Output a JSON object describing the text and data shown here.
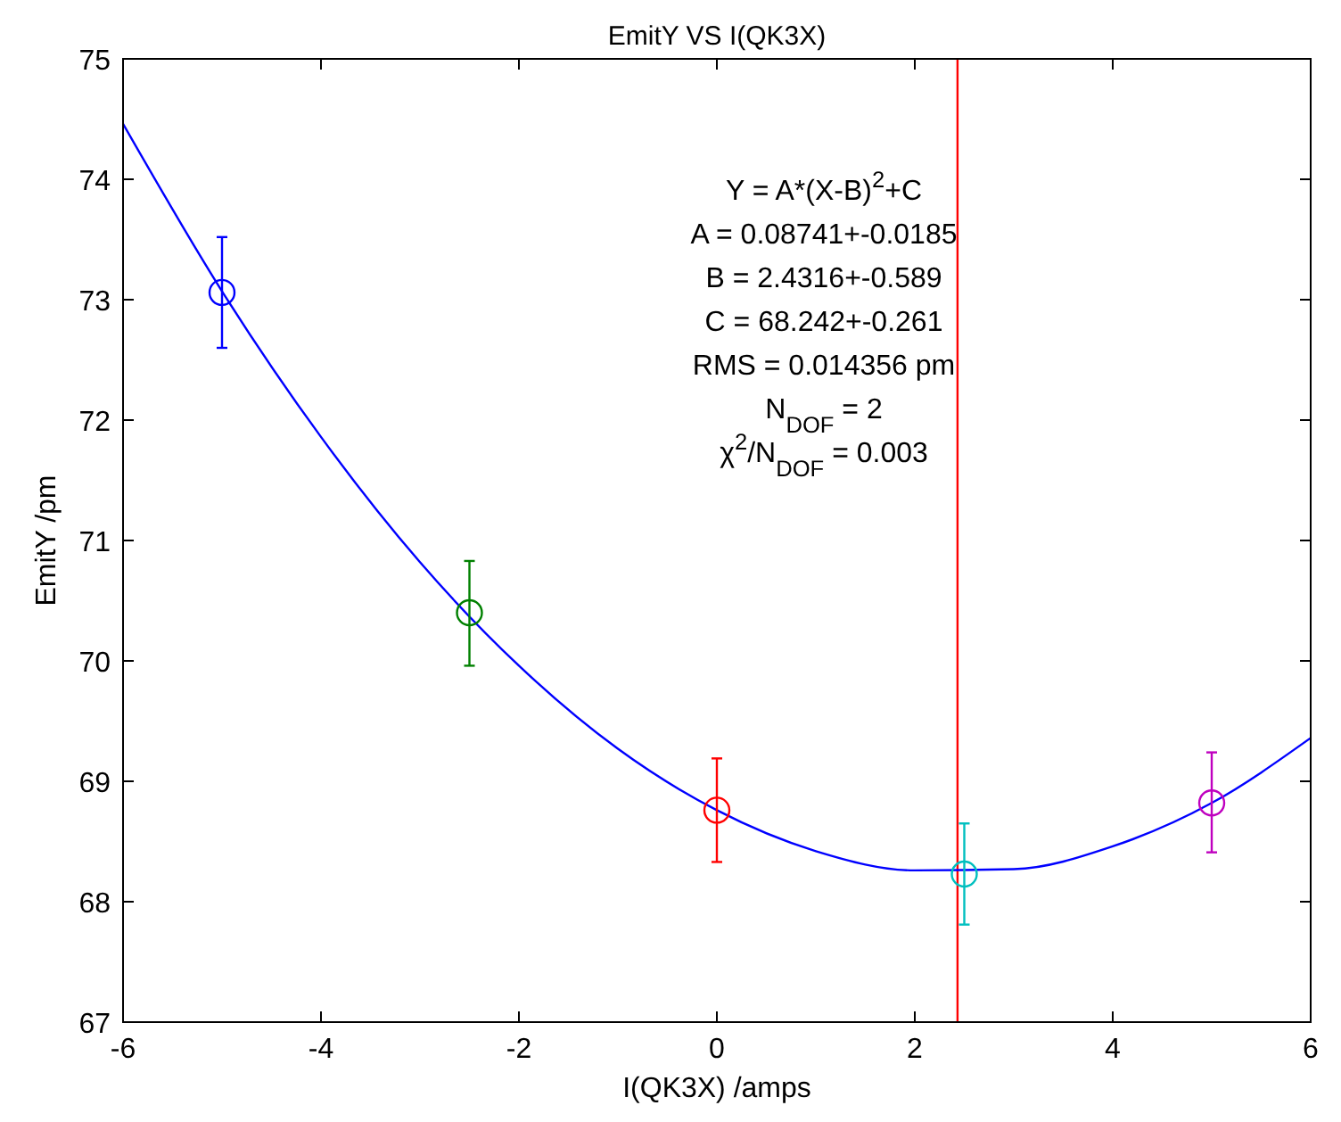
{
  "chart_data": {
    "type": "scatter",
    "title": "EmitY VS I(QK3X)",
    "xlabel": "I(QK3X) /amps",
    "ylabel": "EmitY /pm",
    "xlim": [
      -6,
      6
    ],
    "xticks": [
      -6,
      -4,
      -2,
      0,
      2,
      4,
      6
    ],
    "ylim": [
      67,
      75
    ],
    "yticks": [
      67,
      68,
      69,
      70,
      71,
      72,
      73,
      74,
      75
    ],
    "grid": false,
    "series": [
      {
        "type": "line",
        "color": "#0000ff",
        "marker": "none",
        "line_style": "solid",
        "x": [
          -6,
          -5,
          -4,
          -3,
          -2,
          -1,
          0,
          1,
          2,
          3,
          4,
          5,
          6
        ],
        "values": [
          74.46,
          73.07,
          71.86,
          70.82,
          69.96,
          69.27,
          68.76,
          68.42,
          68.26,
          68.27,
          68.46,
          68.82,
          69.36
        ]
      },
      {
        "color": "#0000ff",
        "marker": "circle",
        "x": [
          -5
        ],
        "values": [
          73.06
        ],
        "errors": [
          [
            72.6,
            73.52
          ]
        ]
      },
      {
        "color": "#008000",
        "marker": "circle",
        "x": [
          -2.5
        ],
        "values": [
          70.4
        ],
        "errors": [
          [
            69.96,
            70.83
          ]
        ]
      },
      {
        "color": "#ff0000",
        "marker": "circle",
        "x": [
          0
        ],
        "values": [
          68.76
        ],
        "errors": [
          [
            68.33,
            69.19
          ]
        ]
      },
      {
        "color": "#00bfbf",
        "marker": "circle",
        "x": [
          2.5
        ],
        "values": [
          68.23
        ],
        "errors": [
          [
            67.81,
            68.65
          ]
        ]
      },
      {
        "color": "#bf00bf",
        "marker": "circle",
        "x": [
          5
        ],
        "values": [
          68.82
        ],
        "errors": [
          [
            68.41,
            69.24
          ]
        ]
      }
    ],
    "ref_lines": [
      {
        "axis": "x",
        "value": 2.4316,
        "color": "#ff0000",
        "line_style": "solid"
      }
    ],
    "annotations": [
      "Y = A*(X-B)$^{2}$+C",
      "A =  0.08741+-0.0185",
      "B =   2.4316+-0.589",
      "C =   68.242+-0.261",
      "RMS = 0.014356 pm",
      "N$_{DOF}$ = 2",
      "χ$^{2}$/N$_{DOF}$ = 0.003"
    ]
  }
}
